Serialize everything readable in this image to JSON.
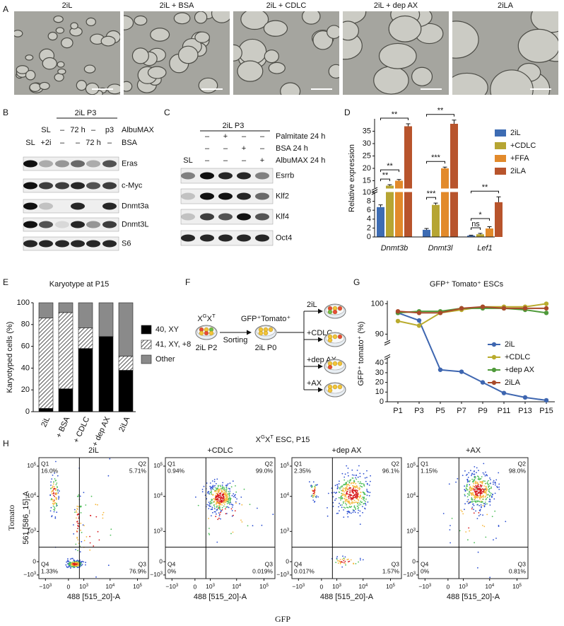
{
  "panel_labels": [
    "A",
    "B",
    "C",
    "D",
    "E",
    "F",
    "G",
    "H"
  ],
  "panel_a": {
    "titles": [
      "2iL",
      "2iL + BSA",
      "2iL + CDLC",
      "2iL + dep AX",
      "2iLA"
    ]
  },
  "panel_b": {
    "header": "2iL P3",
    "rows": [
      {
        "label": "AlbuMAX",
        "cells": [
          "SL",
          "–",
          "72 h",
          "–",
          "p3"
        ]
      },
      {
        "label": "BSA",
        "cells": [
          "SL",
          "+2i",
          "–",
          "–",
          "72 h",
          "–"
        ]
      }
    ],
    "blots": [
      "Eras",
      "c-Myc",
      "Dnmt3a",
      "Dnmt3L",
      "S6"
    ]
  },
  "panel_c": {
    "header": "2iL P3",
    "rows": [
      {
        "label": "Palmitate 24 h",
        "cells": [
          "–",
          "+",
          "–",
          "–"
        ]
      },
      {
        "label": "BSA 24 h",
        "cells": [
          "–",
          "–",
          "+",
          "–"
        ]
      },
      {
        "label": "AlbuMAX 24 h",
        "cells": [
          "SL",
          "–",
          "–",
          "–",
          "+"
        ]
      }
    ],
    "blots": [
      "Esrrb",
      "Klf2",
      "Klf4",
      "Oct4"
    ]
  },
  "chart_data": [
    {
      "type": "bar",
      "y_label": "Relative expression",
      "categories": [
        "Dnmt3b",
        "Dnmt3l",
        "Lef1"
      ],
      "series": [
        {
          "name": "2iL",
          "color": "#3d6cb3",
          "values": [
            6.7,
            1.6,
            0.3
          ],
          "errors": [
            0.5,
            0.3,
            0.1
          ]
        },
        {
          "name": "+CDLC",
          "color": "#b6a533",
          "values": [
            13,
            7.2,
            0.6
          ],
          "errors": [
            0.4,
            0.4,
            0.2
          ]
        },
        {
          "name": "+FFA",
          "color": "#e28a2b",
          "values": [
            15,
            20,
            1.9
          ],
          "errors": [
            0.5,
            0.5,
            0.4
          ]
        },
        {
          "name": "2iLA",
          "color": "#b8542c",
          "values": [
            37,
            38,
            7.8
          ],
          "errors": [
            1,
            1.5,
            1.2
          ]
        }
      ],
      "significance": [
        [
          "**",
          "**",
          "**"
        ],
        [
          "***",
          "***",
          "**"
        ],
        [
          "ns",
          "*",
          "**"
        ]
      ],
      "ylim": [
        0,
        40
      ],
      "ybreak": [
        10,
        12
      ],
      "yticks": [
        0,
        2,
        4,
        6,
        8,
        10,
        15,
        20,
        25,
        30,
        35
      ],
      "legend": "upper right"
    },
    {
      "type": "bar",
      "stacked": true,
      "title": "Karyotype at P15",
      "y_label": "Karyotyped cells (%)",
      "categories": [
        "2iL",
        "+ BSA",
        "+ CDLC",
        "+ dep AX",
        "2iLA"
      ],
      "series": [
        {
          "name": "40, XY",
          "color": "#000000",
          "values": [
            3,
            21,
            58,
            69,
            38
          ]
        },
        {
          "name": "41, XY, +8",
          "color": "#ffffff",
          "hatch": true,
          "values": [
            83,
            70,
            19,
            0,
            13
          ]
        },
        {
          "name": "Other",
          "color": "#8a8a8a",
          "values": [
            14,
            9,
            23,
            31,
            49
          ]
        }
      ],
      "ylim": [
        0,
        100
      ],
      "yticks": [
        0,
        20,
        40,
        60,
        80,
        100
      ],
      "legend": "right"
    },
    {
      "type": "line",
      "title": "GFP⁺ Tomato⁺ ESCs",
      "y_label": "GFP⁺ tomato⁺ (%)",
      "categories": [
        "P1",
        "P3",
        "P5",
        "P7",
        "P9",
        "P11",
        "P13",
        "P15"
      ],
      "series": [
        {
          "name": "2iL",
          "color": "#3e66b0",
          "values": [
            97,
            94.5,
            33,
            31,
            20,
            9,
            4.5,
            1.5
          ]
        },
        {
          "name": "+CDLC",
          "color": "#b9ab2d",
          "values": [
            94.3,
            92.8,
            97,
            98,
            99,
            99,
            99,
            100
          ]
        },
        {
          "name": "+dep AX",
          "color": "#4f9a3a",
          "values": [
            97,
            97.5,
            97.5,
            98.5,
            98.5,
            98.5,
            98,
            97
          ]
        },
        {
          "name": "2iLA",
          "color": "#a84a2a",
          "values": [
            97.5,
            97,
            97,
            98.5,
            99,
            98.5,
            98.5,
            98.5
          ]
        }
      ],
      "ylim": [
        0,
        101
      ],
      "ybreak": [
        45,
        88
      ],
      "yticks": [
        0,
        10,
        20,
        30,
        40,
        90,
        100
      ],
      "legend": "right"
    }
  ],
  "panel_f": {
    "culture": [
      "X",
      "G",
      "X",
      "T"
    ],
    "p2": "2iL P2",
    "sorting": "Sorting",
    "sorted": "GFP⁺Tomato⁺",
    "p0": "2iL P0",
    "branches": [
      "2iL",
      "+CDLC",
      "+dep AX",
      "+AX"
    ]
  },
  "panel_h": {
    "title": [
      "X",
      "G",
      "X",
      "T",
      " ESC, P15"
    ],
    "y_ticks": [
      {
        "base": "10",
        "sup": "5"
      },
      {
        "base": "10",
        "sup": "4"
      },
      {
        "base": "10",
        "sup": "3"
      },
      "0",
      {
        "base": "−10",
        "sup": "3"
      }
    ],
    "x_ticks": [
      {
        "base": "−10",
        "sup": "3"
      },
      "0",
      {
        "base": "10",
        "sup": "3"
      },
      {
        "base": "10",
        "sup": "4"
      },
      {
        "base": "10",
        "sup": "5"
      }
    ],
    "x_label": "488 [515_20]-A",
    "y_label": "561 [586_15]-A",
    "axis_title_y": "Tomato",
    "axis_title_x": "GFP",
    "plots": [
      {
        "title": "2iL",
        "quadrants": [
          [
            "Q1",
            "16.0%"
          ],
          [
            "Q2",
            "5.71%"
          ],
          [
            "Q3",
            "76.9%"
          ],
          [
            "Q4",
            "1.33%"
          ]
        ]
      },
      {
        "title": "+CDLC",
        "quadrants": [
          [
            "Q1",
            "0.94%"
          ],
          [
            "Q2",
            "99.0%"
          ],
          [
            "Q3",
            "0.019%"
          ],
          [
            "Q4",
            "0%"
          ]
        ]
      },
      {
        "title": "+dep AX",
        "quadrants": [
          [
            "Q1",
            "2.35%"
          ],
          [
            "Q2",
            "96.1%"
          ],
          [
            "Q3",
            "1.57%"
          ],
          [
            "Q4",
            "0.017%"
          ]
        ]
      },
      {
        "title": "+AX",
        "quadrants": [
          [
            "Q1",
            "1.15%"
          ],
          [
            "Q2",
            "98.0%"
          ],
          [
            "Q3",
            "0.81%"
          ],
          [
            "Q4",
            "0%"
          ]
        ]
      }
    ]
  }
}
